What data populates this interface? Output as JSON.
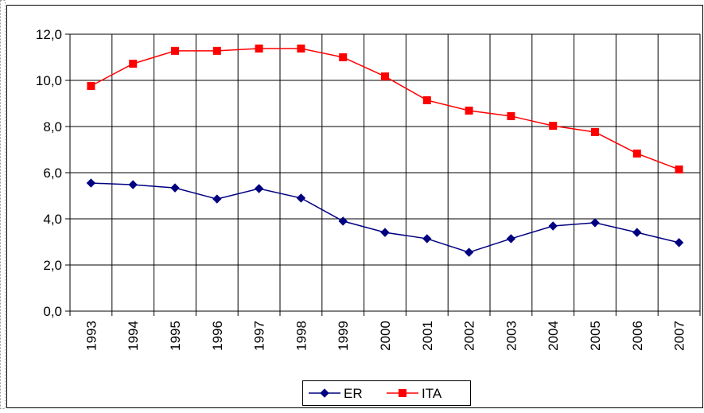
{
  "chart_data": {
    "type": "line",
    "categories": [
      "1993",
      "1994",
      "1995",
      "1996",
      "1997",
      "1998",
      "1999",
      "2000",
      "2001",
      "2002",
      "2003",
      "2004",
      "2005",
      "2006",
      "2007"
    ],
    "series": [
      {
        "name": "ER",
        "color": "#000080",
        "marker": "diamond",
        "values": [
          5.55,
          5.48,
          5.34,
          4.86,
          5.31,
          4.9,
          3.9,
          3.41,
          3.14,
          2.55,
          3.14,
          3.69,
          3.83,
          3.41,
          2.97
        ]
      },
      {
        "name": "ITA",
        "color": "#ff0000",
        "marker": "square",
        "values": [
          9.76,
          10.72,
          11.28,
          11.28,
          11.38,
          11.38,
          11.0,
          10.17,
          9.14,
          8.69,
          8.45,
          8.03,
          7.76,
          6.83,
          6.14
        ]
      }
    ],
    "ylim": [
      0,
      12
    ],
    "yticks": [
      {
        "value": 0,
        "label": "0,0"
      },
      {
        "value": 2,
        "label": "2,0"
      },
      {
        "value": 4,
        "label": "4,0"
      },
      {
        "value": 6,
        "label": "6,0"
      },
      {
        "value": 8,
        "label": "8,0"
      },
      {
        "value": 10,
        "label": "10,0"
      },
      {
        "value": 12,
        "label": "12,0"
      }
    ],
    "grid": true,
    "legend": "bottom"
  }
}
